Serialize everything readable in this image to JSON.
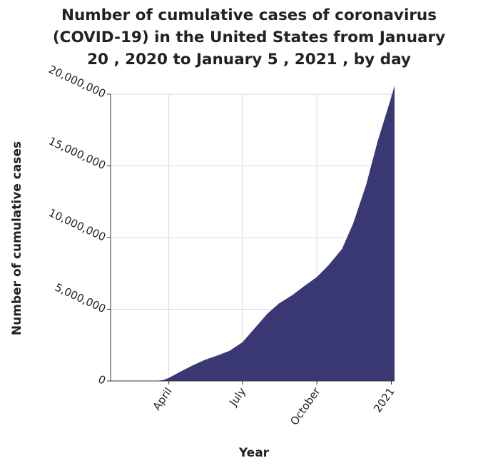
{
  "chart_data": {
    "type": "area",
    "title": "Number of cumulative cases of coronavirus (COVID-19) in the United States from January 20 , 2020 to January 5 , 2021 , by day",
    "xlabel": "Year",
    "ylabel": "Number of cumulative cases",
    "xlim": [
      "2020-01-20",
      "2021-01-05"
    ],
    "ylim": [
      0,
      20000000
    ],
    "x_ticks": [
      {
        "date": "2020-04-01",
        "label": "April"
      },
      {
        "date": "2020-07-01",
        "label": "July"
      },
      {
        "date": "2020-10-01",
        "label": "October"
      },
      {
        "date": "2021-01-01",
        "label": "2021"
      }
    ],
    "y_ticks": [
      {
        "value": 0,
        "label": "0"
      },
      {
        "value": 5000000,
        "label": "5,000,000"
      },
      {
        "value": 10000000,
        "label": "10,000,000"
      },
      {
        "value": 15000000,
        "label": "15,000,000"
      },
      {
        "value": 20000000,
        "label": "20,000,000"
      }
    ],
    "grid": true,
    "color": "#3a3874",
    "series": [
      {
        "x": [
          "2020-01-20",
          "2020-03-01",
          "2020-03-15",
          "2020-03-25",
          "2020-04-01",
          "2020-04-15",
          "2020-05-01",
          "2020-05-15",
          "2020-06-01",
          "2020-06-15",
          "2020-07-01",
          "2020-07-15",
          "2020-08-01",
          "2020-08-15",
          "2020-09-01",
          "2020-09-15",
          "2020-10-01",
          "2020-10-15",
          "2020-11-01",
          "2020-11-15",
          "2020-12-01",
          "2020-12-15",
          "2021-01-01",
          "2021-01-05"
        ],
        "values": [
          0,
          50,
          3000,
          65000,
          210000,
          640000,
          1100000,
          1460000,
          1800000,
          2100000,
          2700000,
          3600000,
          4700000,
          5400000,
          6000000,
          6600000,
          7250000,
          8050000,
          9200000,
          11000000,
          13700000,
          16700000,
          19800000,
          20600000
        ]
      }
    ]
  }
}
